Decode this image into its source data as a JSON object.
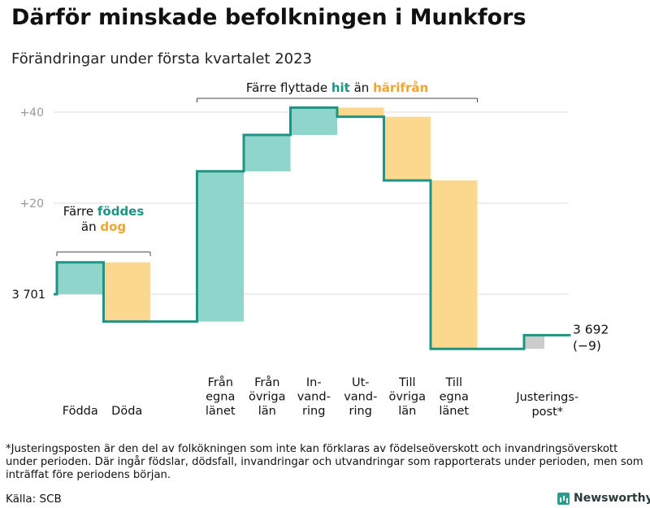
{
  "header": {
    "title": "Därför minskade befolkningen i Munkfors",
    "subtitle": "Förändringar under första kvartalet 2023"
  },
  "chart_data": {
    "type": "waterfall",
    "start_label": "3 701",
    "start_value": 0,
    "y_ticks": [
      {
        "value": 20,
        "label": "+20"
      },
      {
        "value": 40,
        "label": "+40"
      }
    ],
    "ylim": [
      -13,
      43
    ],
    "grid": true,
    "steps": [
      {
        "category": [
          "Födda"
        ],
        "delta": 7,
        "kind": "in"
      },
      {
        "category": [
          "Döda"
        ],
        "delta": -13,
        "kind": "out"
      },
      {
        "category": [
          "Från",
          "egna",
          "länet"
        ],
        "delta": 33,
        "kind": "in"
      },
      {
        "category": [
          "Från",
          "övriga",
          "län"
        ],
        "delta": 8,
        "kind": "in"
      },
      {
        "category": [
          "In-",
          "vand-",
          "ring"
        ],
        "delta": 6,
        "kind": "in"
      },
      {
        "category": [
          "Ut-",
          "vand-",
          "ring"
        ],
        "delta": -2,
        "kind": "out"
      },
      {
        "category": [
          "Till",
          "övriga",
          "län"
        ],
        "delta": -14,
        "kind": "out"
      },
      {
        "category": [
          "Till",
          "egna",
          "länet"
        ],
        "delta": -37,
        "kind": "out"
      },
      {
        "category": [
          "Justerings-",
          "post*"
        ],
        "delta": 3,
        "kind": "adjust"
      }
    ],
    "end_label": "3 692",
    "end_change": "(−9)",
    "annotations": [
      {
        "lines": [
          [
            "Färre ",
            "föddes",
            ""
          ],
          [
            "än ",
            "dog",
            ""
          ]
        ],
        "from_step": 0,
        "to_step": 1
      },
      {
        "lines": [
          [
            "Färre flyttade ",
            "hit",
            " än ",
            "härifrån",
            ""
          ]
        ],
        "from_step": 2,
        "to_step": 7
      }
    ],
    "colors": {
      "in": "#8fd5cc",
      "out": "#fcd88e",
      "adjust": "#cccccc",
      "line": "#1e9484",
      "in_text": "#1e9484",
      "out_text": "#f0a52e",
      "grid": "#dcdcdc"
    }
  },
  "footer": {
    "footnote": "*Justeringsposten är den del av folkökningen som inte kan förklaras av födelseöverskott och invandringsöverskott under perioden. Där ingår födslar, dödsfall, invandringar och utvandringar som rapporterats under perioden, men som inträffat före periodens början.",
    "source": "Källa: SCB",
    "brand": "Newsworthy"
  }
}
